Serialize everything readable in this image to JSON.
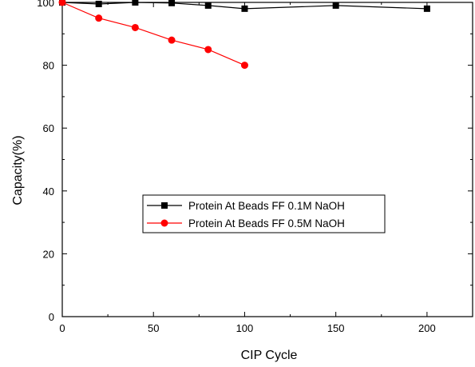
{
  "chart_data": {
    "type": "line",
    "title": "",
    "xlabel": "CIP Cycle",
    "ylabel": "Capacity(%)",
    "xlim": [
      0,
      225
    ],
    "ylim": [
      0,
      100
    ],
    "x_ticks": [
      0,
      50,
      100,
      150,
      200
    ],
    "y_ticks": [
      0,
      20,
      40,
      60,
      80,
      100
    ],
    "grid": false,
    "legend_position": "center",
    "series": [
      {
        "name": "Protein At Beads FF 0.1M NaOH",
        "color": "#000000",
        "marker": "square",
        "points": [
          [
            0,
            100
          ],
          [
            20,
            99.5
          ],
          [
            40,
            100
          ],
          [
            60,
            99.8
          ],
          [
            80,
            99
          ],
          [
            100,
            98
          ],
          [
            150,
            99
          ],
          [
            200,
            98
          ]
        ]
      },
      {
        "name": "Protein At Beads FF 0.5M NaOH",
        "color": "#ff0000",
        "marker": "circle",
        "points": [
          [
            0,
            100
          ],
          [
            20,
            95
          ],
          [
            40,
            92
          ],
          [
            60,
            88
          ],
          [
            80,
            85
          ],
          [
            100,
            80
          ]
        ]
      }
    ]
  }
}
